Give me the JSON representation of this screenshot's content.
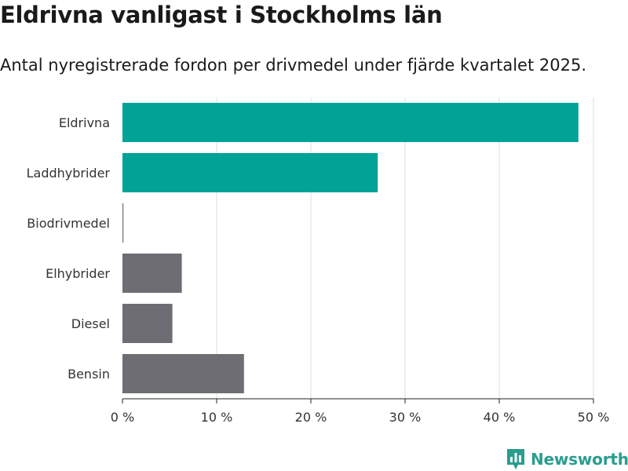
{
  "header": {
    "title": "Eldrivna vanligast i Stockholms län",
    "subtitle": "Antal nyregistrerade fordon per drivmedel under fjärde kvartalet 2025."
  },
  "chart_data": {
    "type": "bar",
    "orientation": "horizontal",
    "title": "Eldrivna vanligast i Stockholms län",
    "subtitle": "Antal nyregistrerade fordon per drivmedel under fjärde kvartalet 2025.",
    "xlabel": "",
    "ylabel": "",
    "xlim": [
      0,
      50
    ],
    "ticks": [
      0,
      10,
      20,
      30,
      40,
      50
    ],
    "tick_suffix": " %",
    "grid": true,
    "categories": [
      "Eldrivna",
      "Laddhybrider",
      "Biodrivmedel",
      "Elhybrider",
      "Diesel",
      "Bensin"
    ],
    "values": [
      48.4,
      27.1,
      0.1,
      6.3,
      5.3,
      12.9
    ],
    "highlight": [
      true,
      true,
      false,
      false,
      false,
      false
    ],
    "colors": {
      "highlight": "#00a396",
      "default": "#6e6d73",
      "grid": "#dddddd",
      "axis": "#222222"
    }
  },
  "branding": {
    "logo_text": "Newsworthy",
    "logo_color": "#2a9d8f",
    "logo_icon": "bar-chart-badge-icon"
  }
}
